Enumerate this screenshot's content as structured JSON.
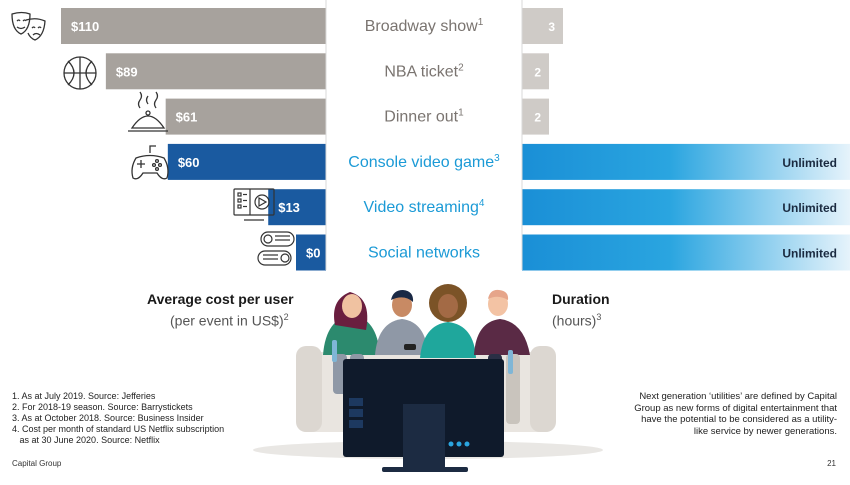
{
  "chart_data": {
    "type": "bar",
    "categories": [
      {
        "label": "Broadway show",
        "sup": "1",
        "cost_label": "$110",
        "duration_label": "3"
      },
      {
        "label": "NBA ticket",
        "sup": "2",
        "cost_label": "$89",
        "duration_label": "2"
      },
      {
        "label": "Dinner out",
        "sup": "1",
        "cost_label": "$61",
        "duration_label": "2"
      },
      {
        "label": "Console video game",
        "sup": "3",
        "cost_label": "$60",
        "duration_label": "Unlimited"
      },
      {
        "label": "Video streaming",
        "sup": "4",
        "cost_label": "$13",
        "duration_label": "Unlimited"
      },
      {
        "label": "Social networks",
        "sup": "",
        "cost_label": "$0",
        "duration_label": "Unlimited"
      }
    ],
    "series": [
      {
        "name": "Average cost per user",
        "values": [
          110,
          89,
          61,
          60,
          13,
          0
        ]
      },
      {
        "name": "Duration",
        "values": [
          3,
          2,
          2,
          "Unlimited",
          "Unlimited",
          "Unlimited"
        ]
      }
    ],
    "cost_axis_title": "Average cost per user",
    "cost_axis_sub": "(per event in US$)",
    "cost_axis_sub_sup": "2",
    "duration_axis_title": "Duration",
    "duration_axis_sub": "(hours)",
    "duration_axis_sub_sup": "3",
    "colors": {
      "traditional": "#a7a29d",
      "traditional_light": "#cfcbc7",
      "traditional_text": "#7a7470",
      "next_gen_dark": "#1a5aa0",
      "next_gen_light": "#2aa5e0",
      "next_gen_text": "#1b9ad6"
    },
    "icons": [
      "theater-masks-icon",
      "basketball-icon",
      "cloche-icon",
      "gamepad-icon",
      "video-streaming-icon",
      "chat-bubbles-icon"
    ]
  },
  "footnotes": [
    "1. As at July 2019. Source: Jefferies",
    "2. For 2018-19 season. Source: Barrystickets",
    "3. As at October 2018. Source: Business Insider",
    "4. Cost per month of standard US Netflix subscription",
    "   as at 30 June 2020. Source: Netflix"
  ],
  "note_right": "Next generation ‘utilities’ are defined by Capital Group as new forms of digital entertainment that have the potential to be considered as a utility-like service by newer generations.",
  "brand": "Capital Group",
  "page_number": "21"
}
